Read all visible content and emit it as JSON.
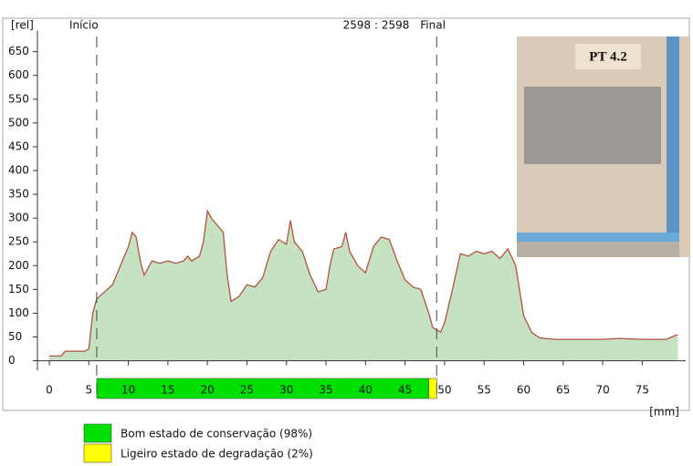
{
  "chart_data": {
    "type": "area",
    "ylabel": "[rel]",
    "xlabel": "[mm]",
    "annotations": [
      "2598 : 2598",
      "PT 4.2"
    ],
    "markers": [
      {
        "label": "Início",
        "x": 6
      },
      {
        "label": "Final",
        "x": 49
      }
    ],
    "x": [
      0,
      1.5,
      2,
      4.5,
      5,
      5.5,
      6,
      7,
      8,
      9,
      10,
      10.5,
      11,
      11.5,
      12,
      13,
      14,
      15,
      16,
      17,
      17.5,
      18,
      19,
      19.5,
      20,
      20.5,
      21,
      22,
      22.5,
      23,
      24,
      25,
      26,
      27,
      28,
      29,
      30,
      30.5,
      31,
      32,
      33,
      34,
      35,
      35.5,
      36,
      37,
      37.5,
      38,
      39,
      40,
      41,
      42,
      43,
      44,
      45,
      46,
      47,
      48,
      48.5,
      49,
      49.5,
      50,
      51,
      52,
      53,
      54,
      55,
      56,
      57,
      58,
      59,
      60,
      61,
      62,
      64,
      66,
      70,
      72,
      75,
      78,
      79.5
    ],
    "values": [
      10,
      10,
      20,
      20,
      25,
      100,
      130,
      145,
      160,
      200,
      240,
      270,
      260,
      210,
      180,
      210,
      205,
      210,
      205,
      210,
      220,
      210,
      220,
      250,
      315,
      300,
      290,
      270,
      180,
      125,
      135,
      160,
      155,
      175,
      230,
      255,
      245,
      295,
      250,
      230,
      180,
      145,
      150,
      200,
      235,
      240,
      270,
      230,
      200,
      185,
      240,
      260,
      255,
      210,
      170,
      155,
      150,
      100,
      70,
      65,
      60,
      80,
      150,
      225,
      220,
      230,
      225,
      230,
      215,
      235,
      200,
      95,
      60,
      48,
      45,
      45,
      45,
      47,
      45,
      45,
      55
    ],
    "color": "#c5e2c3",
    "line_color": "#b5523b",
    "xlim": [
      -1.5,
      80.5
    ],
    "ylim": [
      -20,
      675
    ],
    "xticks": [
      0,
      5,
      10,
      15,
      20,
      25,
      30,
      35,
      40,
      45,
      50,
      55,
      60,
      65,
      70,
      75
    ],
    "yticks": [
      0,
      50,
      100,
      150,
      200,
      250,
      300,
      350,
      400,
      450,
      500,
      550,
      600,
      650
    ],
    "status": [
      {
        "name": "Bom estado de conservação (98%)",
        "color": "#00e000",
        "start": 6,
        "end": 48
      },
      {
        "name": "Ligeiro estado de degradação (2%)",
        "color": "#ffff00",
        "start": 48,
        "end": 49
      }
    ]
  }
}
